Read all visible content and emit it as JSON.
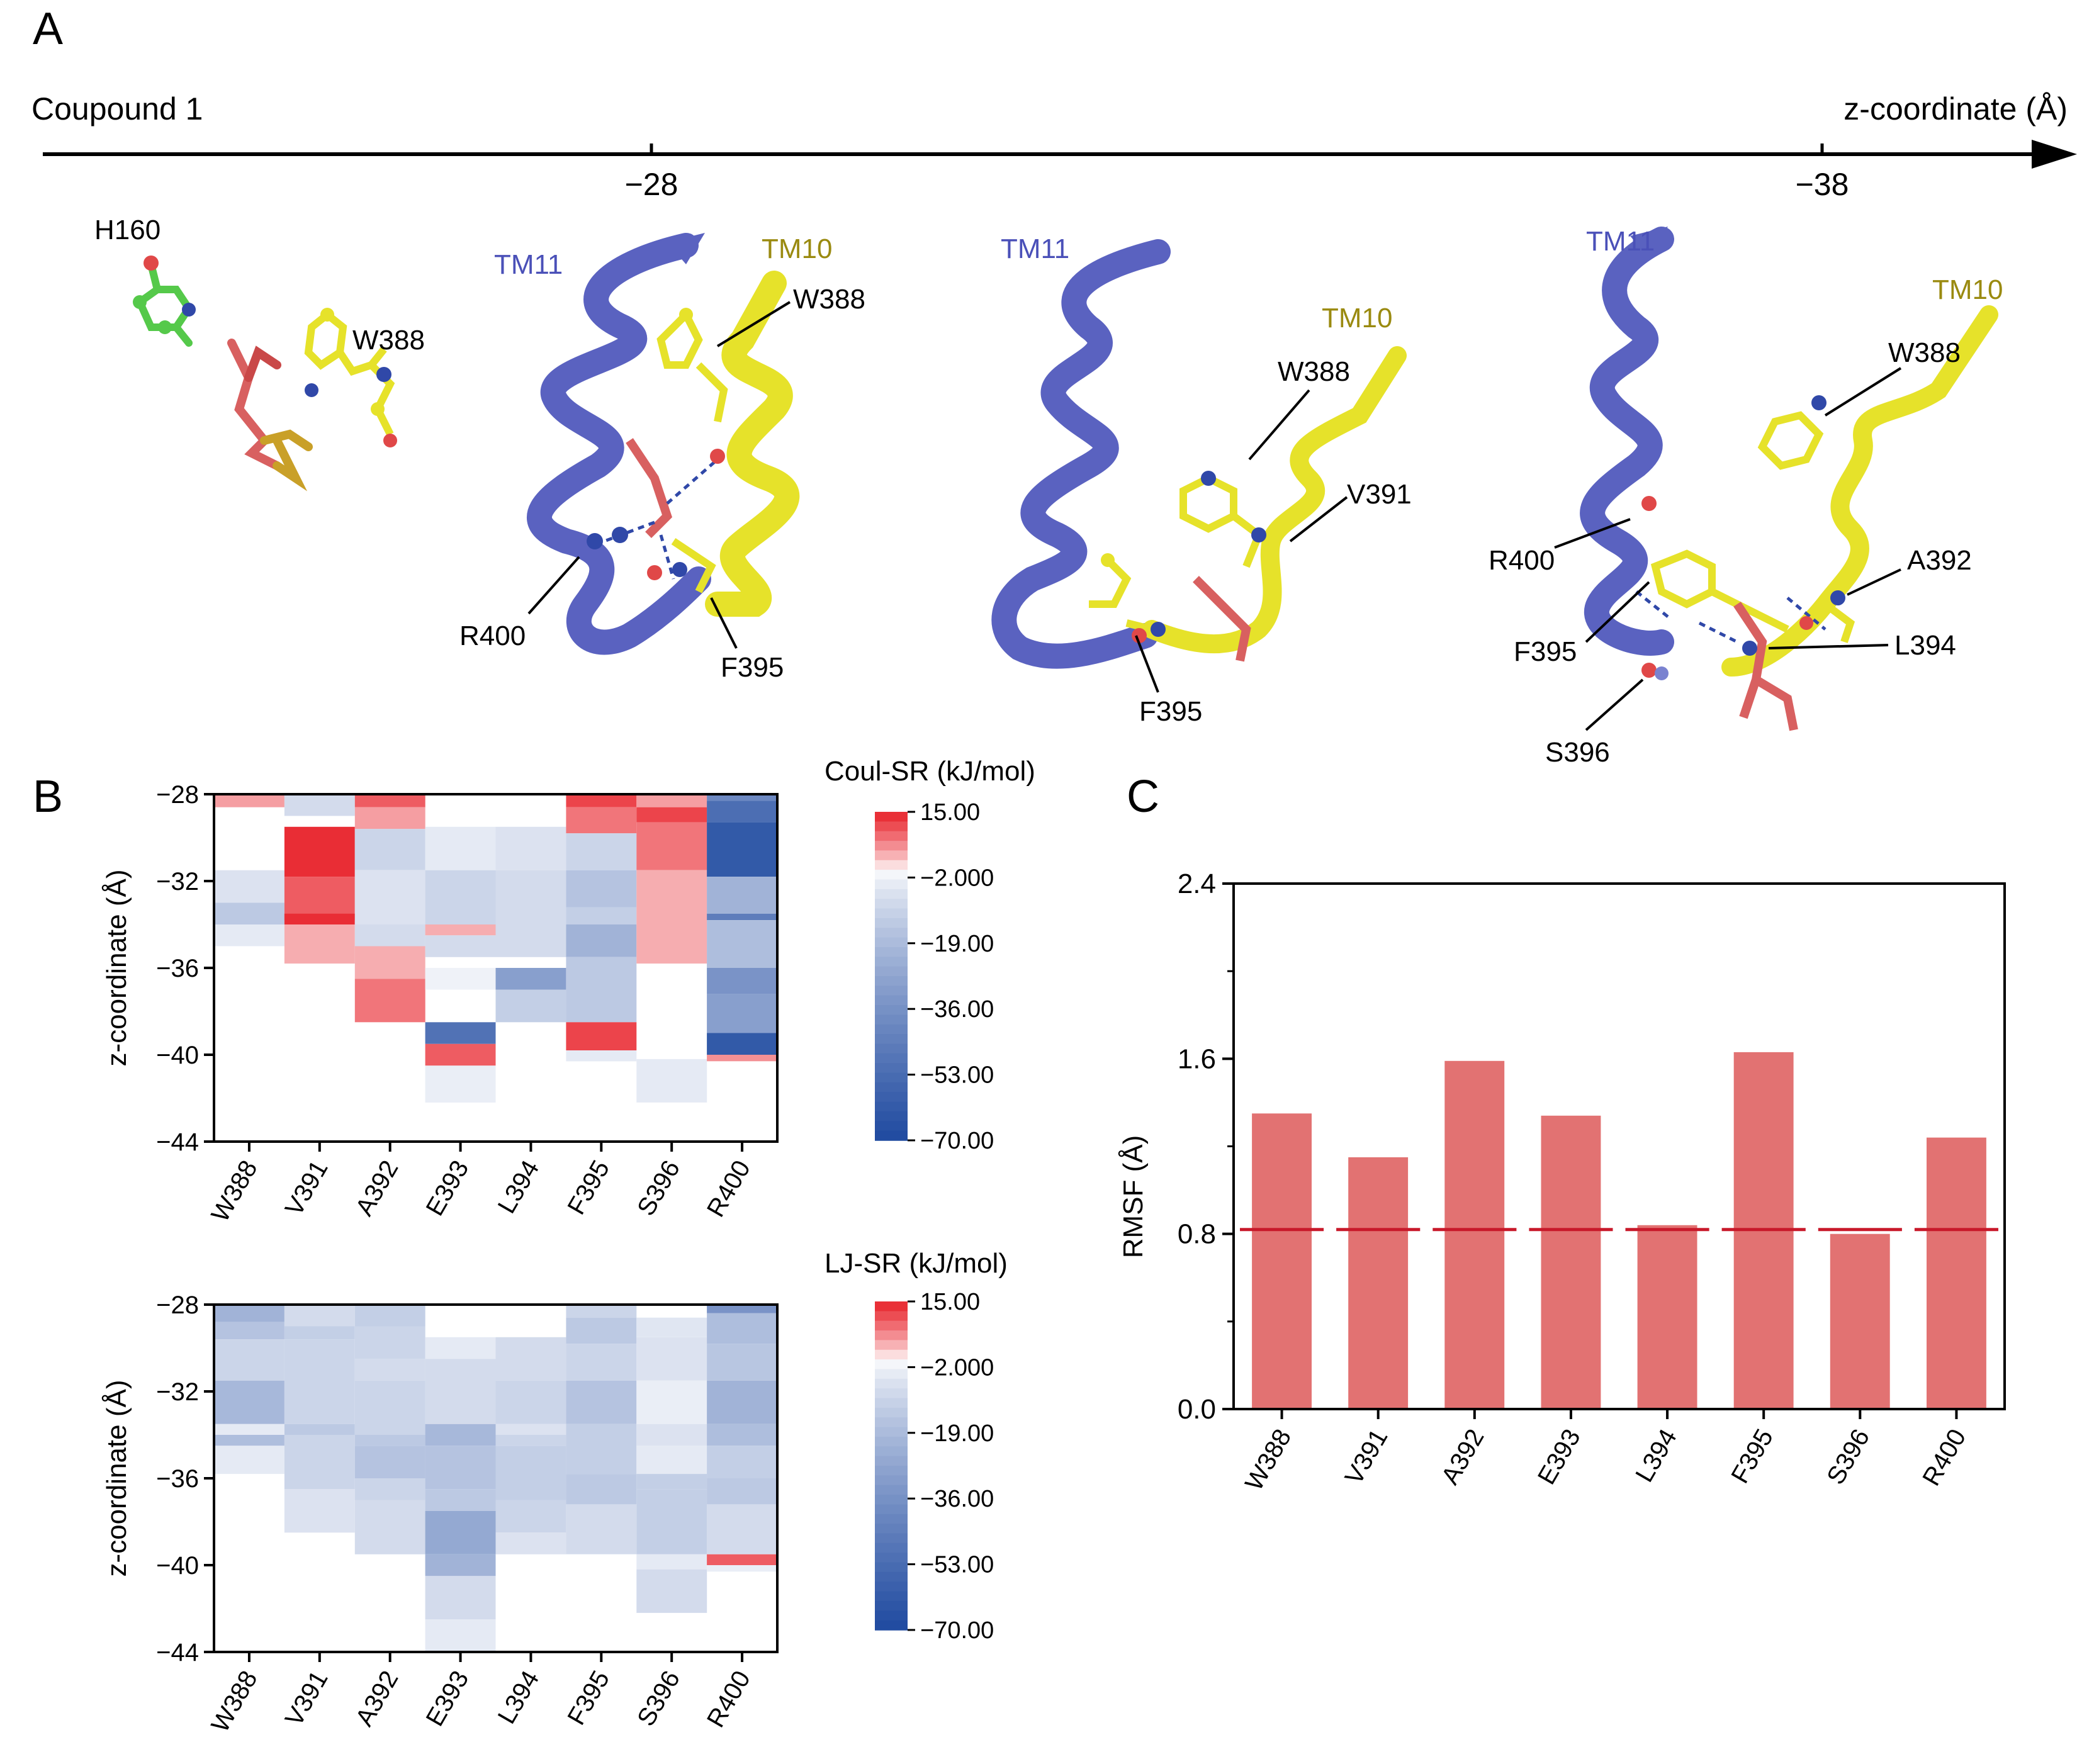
{
  "panel_a": {
    "letter": "A",
    "axis_left_label": "Coupound 1",
    "axis_right_label": "z-coordinate (Å)",
    "tick_left": "−28",
    "tick_right": "−38",
    "structures": [
      {
        "labels": [
          "H160",
          "W388"
        ]
      },
      {
        "labels": [
          "TM11",
          "TM10",
          "W388",
          "R400",
          "F395"
        ]
      },
      {
        "labels": [
          "TM11",
          "TM10",
          "W388",
          "V391",
          "F395"
        ]
      },
      {
        "labels": [
          "TM11",
          "TM10",
          "W388",
          "R400",
          "A392",
          "F395",
          "L394",
          "S396"
        ]
      }
    ]
  },
  "panel_b": {
    "letter": "B",
    "colors": {
      "positive": "#e8222a",
      "negative": "#1f4aa0",
      "zero": "#ffffff"
    },
    "colorbar_ticks": [
      "15.00",
      "−2.000",
      "−19.00",
      "−36.00",
      "−53.00",
      "−70.00"
    ],
    "colorbar_values": [
      15,
      -2,
      -19,
      -36,
      -53,
      -70
    ]
  },
  "chart_data": [
    {
      "type": "heatmap",
      "ylabel": "z-coordinate (Å)",
      "colorbar_label": "Coul-SR (kJ/mol)",
      "ylim": [
        -44,
        -28
      ],
      "yticks": [
        "−28",
        "−32",
        "−36",
        "−40",
        "−44"
      ],
      "ytick_values": [
        -28,
        -32,
        -36,
        -40,
        -44
      ],
      "colorbar_range": [
        -70,
        15
      ],
      "categories": [
        "W388",
        "V391",
        "A392",
        "E393",
        "L394",
        "F395",
        "S396",
        "R400"
      ],
      "cells": [
        [
          [
            -28.6,
            -28,
            5
          ],
          [
            -33,
            -31.5,
            -6
          ],
          [
            -34,
            -33,
            -14
          ],
          [
            -35,
            -34,
            -4
          ]
        ],
        [
          [
            -29,
            -28,
            -8
          ],
          [
            -31.8,
            -29.5,
            14
          ],
          [
            -33.8,
            -31.8,
            10
          ],
          [
            -34,
            -33.5,
            14
          ],
          [
            -35.8,
            -34,
            4
          ]
        ],
        [
          [
            -28.6,
            -28,
            10
          ],
          [
            -29.6,
            -28.6,
            5
          ],
          [
            -31.5,
            -29.6,
            -10
          ],
          [
            -34,
            -31.5,
            -6
          ],
          [
            -35,
            -34,
            -8
          ],
          [
            -36.5,
            -35,
            4
          ],
          [
            -38.5,
            -36.5,
            8
          ]
        ],
        [
          [
            -31.5,
            -29.5,
            -4
          ],
          [
            -34,
            -31.5,
            -10
          ],
          [
            -34.5,
            -34,
            4
          ],
          [
            -35.5,
            -34.5,
            -8
          ],
          [
            -37,
            -36,
            -2
          ],
          [
            -39.5,
            -38.5,
            -50
          ],
          [
            -40.5,
            -39.5,
            10
          ],
          [
            -42.2,
            -40.5,
            -3
          ]
        ],
        [
          [
            -31.5,
            -29.5,
            -6
          ],
          [
            -35.5,
            -31.5,
            -8
          ],
          [
            -37,
            -36,
            -30
          ],
          [
            -38.5,
            -37,
            -12
          ]
        ],
        [
          [
            -28.6,
            -28,
            12
          ],
          [
            -29.8,
            -28.6,
            8
          ],
          [
            -31.5,
            -29.8,
            -10
          ],
          [
            -33.2,
            -31.5,
            -16
          ],
          [
            -34,
            -33.2,
            -12
          ],
          [
            -35.5,
            -34,
            -22
          ],
          [
            -36,
            -35.5,
            -14
          ],
          [
            -38.5,
            -36,
            -14
          ],
          [
            -39.8,
            -38.5,
            12
          ],
          [
            -40.3,
            -39.8,
            -4
          ]
        ],
        [
          [
            -28.6,
            -28,
            5
          ],
          [
            -29.3,
            -28.6,
            12
          ],
          [
            -31.5,
            -29.3,
            8
          ],
          [
            -35.8,
            -31.5,
            4
          ],
          [
            -42.2,
            -40.2,
            -4
          ]
        ],
        [
          [
            -28.3,
            -28,
            -40
          ],
          [
            -29.3,
            -28.3,
            -52
          ],
          [
            -31.8,
            -29.3,
            -62
          ],
          [
            -33.5,
            -31.8,
            -22
          ],
          [
            -33.8,
            -33.5,
            -45
          ],
          [
            -36,
            -33.8,
            -18
          ],
          [
            -37.2,
            -36,
            -35
          ],
          [
            -39,
            -37.2,
            -30
          ],
          [
            -40,
            -39,
            -62
          ],
          [
            -40.3,
            -40,
            6
          ]
        ]
      ]
    },
    {
      "type": "heatmap",
      "ylabel": "z-coordinate (Å)",
      "colorbar_label": "LJ-SR (kJ/mol)",
      "ylim": [
        -44,
        -28
      ],
      "yticks": [
        "−28",
        "−32",
        "−36",
        "−40",
        "−44"
      ],
      "ytick_values": [
        -28,
        -32,
        -36,
        -40,
        -44
      ],
      "colorbar_range": [
        -70,
        15
      ],
      "categories": [
        "W388",
        "V391",
        "A392",
        "E393",
        "L394",
        "F395",
        "S396",
        "R400"
      ],
      "cells": [
        [
          [
            -28.8,
            -28,
            -22
          ],
          [
            -29.6,
            -28.8,
            -16
          ],
          [
            -31.5,
            -29.6,
            -10
          ],
          [
            -33.5,
            -31.5,
            -20
          ],
          [
            -34,
            -33.5,
            -4
          ],
          [
            -34.5,
            -34,
            -18
          ],
          [
            -35.8,
            -34.5,
            -4
          ]
        ],
        [
          [
            -29,
            -28,
            -8
          ],
          [
            -29.6,
            -29,
            -12
          ],
          [
            -33.5,
            -29.6,
            -10
          ],
          [
            -34,
            -33.5,
            -14
          ],
          [
            -36.5,
            -34,
            -10
          ],
          [
            -38.5,
            -36.5,
            -6
          ]
        ],
        [
          [
            -29,
            -28,
            -12
          ],
          [
            -30.5,
            -29,
            -10
          ],
          [
            -31.5,
            -30.5,
            -8
          ],
          [
            -34,
            -31.5,
            -10
          ],
          [
            -34.5,
            -34,
            -14
          ],
          [
            -36,
            -34.5,
            -16
          ],
          [
            -37,
            -36,
            -10
          ],
          [
            -39.5,
            -37,
            -8
          ]
        ],
        [
          [
            -30.5,
            -29.5,
            -4
          ],
          [
            -33.5,
            -30.5,
            -8
          ],
          [
            -34.5,
            -33.5,
            -20
          ],
          [
            -36.5,
            -34.5,
            -16
          ],
          [
            -37.5,
            -36.5,
            -14
          ],
          [
            -39.5,
            -37.5,
            -26
          ],
          [
            -40.5,
            -39.5,
            -22
          ],
          [
            -42.5,
            -40.5,
            -8
          ],
          [
            -44,
            -42.5,
            -4
          ]
        ],
        [
          [
            -31.5,
            -29.5,
            -8
          ],
          [
            -33.5,
            -31.5,
            -10
          ],
          [
            -34,
            -33.5,
            -6
          ],
          [
            -34.5,
            -34,
            -10
          ],
          [
            -37,
            -34.5,
            -12
          ],
          [
            -38.5,
            -37,
            -10
          ],
          [
            -39.5,
            -38.5,
            -6
          ]
        ],
        [
          [
            -28.6,
            -28,
            -10
          ],
          [
            -29.8,
            -28.6,
            -14
          ],
          [
            -31.5,
            -29.8,
            -10
          ],
          [
            -33.5,
            -31.5,
            -16
          ],
          [
            -35.8,
            -33.5,
            -12
          ],
          [
            -37.2,
            -35.8,
            -14
          ],
          [
            -39.5,
            -37.2,
            -8
          ]
        ],
        [
          [
            -29.5,
            -28.6,
            -5
          ],
          [
            -31.5,
            -29.5,
            -6
          ],
          [
            -33.5,
            -31.5,
            -3
          ],
          [
            -34,
            -33.5,
            -6
          ],
          [
            -34.5,
            -34,
            -6
          ],
          [
            -35.8,
            -34.5,
            -4
          ],
          [
            -36.5,
            -35.8,
            -12
          ],
          [
            -39.5,
            -36.5,
            -12
          ],
          [
            -40.2,
            -39.5,
            -4
          ],
          [
            -42.2,
            -40.2,
            -8
          ]
        ],
        [
          [
            -28.4,
            -28,
            -35
          ],
          [
            -29.8,
            -28.4,
            -18
          ],
          [
            -31.5,
            -29.8,
            -15
          ],
          [
            -33.5,
            -31.5,
            -22
          ],
          [
            -34.5,
            -33.5,
            -18
          ],
          [
            -36,
            -34.5,
            -12
          ],
          [
            -37.2,
            -36,
            -14
          ],
          [
            -39.5,
            -37.2,
            -8
          ],
          [
            -40,
            -39.5,
            10
          ],
          [
            -40.3,
            -40,
            -3
          ]
        ]
      ]
    },
    {
      "type": "bar",
      "ylabel": "RMSF (Å)",
      "categories": [
        "W388",
        "V391",
        "A392",
        "E393",
        "L394",
        "F395",
        "S396",
        "R400"
      ],
      "values": [
        1.35,
        1.15,
        1.59,
        1.34,
        0.84,
        1.63,
        0.8,
        1.24
      ],
      "reference_line": 0.82,
      "ylim": [
        0.0,
        2.4
      ],
      "yticks": [
        "0.0",
        "0.8",
        "1.6",
        "2.4"
      ],
      "ytick_values": [
        0.0,
        0.8,
        1.6,
        2.4
      ],
      "bar_color": "#e27272",
      "line_color": "#c8192a"
    }
  ],
  "panel_c": {
    "letter": "C"
  }
}
